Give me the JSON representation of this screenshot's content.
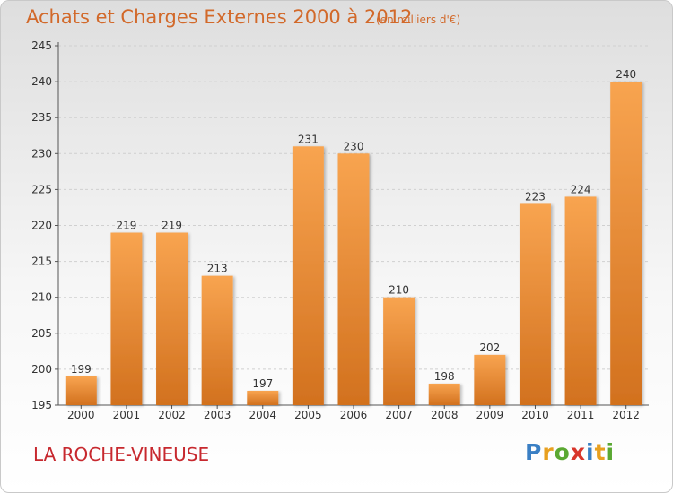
{
  "title": "Achats et Charges Externes 2000 à 2012",
  "unit_note": "(en milliers d'€)",
  "location": "LA ROCHE-VINEUSE",
  "logo": {
    "letters": [
      {
        "ch": "P",
        "color": "#3a7fc4"
      },
      {
        "ch": "r",
        "color": "#e8a020"
      },
      {
        "ch": "o",
        "color": "#5aa832"
      },
      {
        "ch": "x",
        "color": "#d8352a"
      },
      {
        "ch": "i",
        "color": "#3a7fc4"
      },
      {
        "ch": "t",
        "color": "#e8a020"
      },
      {
        "ch": "i",
        "color": "#5aa832"
      }
    ]
  },
  "colors": {
    "bar_top": "#f8a450",
    "bar_bottom": "#d2711e",
    "text": "#d2692a",
    "location": "#c7282e"
  },
  "chart_data": {
    "type": "bar",
    "title": "Achats et Charges Externes 2000 à 2012",
    "categories": [
      "2000",
      "2001",
      "2002",
      "2003",
      "2004",
      "2005",
      "2006",
      "2007",
      "2008",
      "2009",
      "2010",
      "2011",
      "2012"
    ],
    "values": [
      199,
      219,
      219,
      213,
      197,
      231,
      230,
      210,
      198,
      202,
      223,
      224,
      240
    ],
    "ylim": [
      195,
      245
    ],
    "yticks": [
      195,
      200,
      205,
      210,
      215,
      220,
      225,
      230,
      235,
      240,
      245
    ],
    "grid": true,
    "legend": "none"
  }
}
